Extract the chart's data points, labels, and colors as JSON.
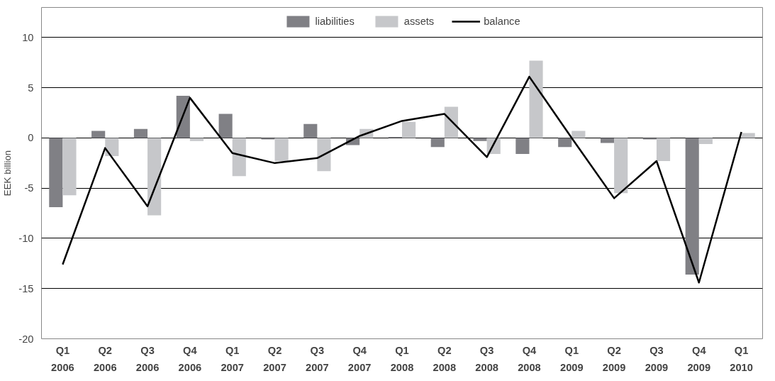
{
  "chart_data": {
    "type": "bar",
    "ylabel": "EEK billion",
    "categories": [
      "Q1\n2006",
      "Q2\n2006",
      "Q3\n2006",
      "Q4\n2006",
      "Q1\n2007",
      "Q2\n2007",
      "Q3\n2007",
      "Q4\n2007",
      "Q1\n2008",
      "Q2\n2008",
      "Q3\n2008",
      "Q4\n2008",
      "Q1\n2009",
      "Q2\n2009",
      "Q3\n2009",
      "Q4\n2009",
      "Q1\n2010"
    ],
    "series": [
      {
        "name": "liabilities",
        "color": "#808085",
        "values": [
          -6.9,
          0.7,
          0.9,
          4.2,
          2.4,
          -0.15,
          1.4,
          -0.7,
          0.1,
          -0.9,
          -0.3,
          -1.6,
          -0.9,
          -0.5,
          -0.15,
          -13.6,
          null
        ]
      },
      {
        "name": "assets",
        "color": "#c6c7ca",
        "values": [
          -5.7,
          -1.8,
          -7.7,
          -0.3,
          -3.8,
          -2.3,
          -3.3,
          0.9,
          1.6,
          3.1,
          -1.6,
          7.7,
          0.7,
          -5.5,
          -2.3,
          -0.6,
          0.5
        ]
      },
      {
        "name": "balance",
        "type": "line",
        "color": "#000000",
        "values": [
          -12.6,
          -1.0,
          -6.8,
          4.0,
          -1.5,
          -2.5,
          -2.0,
          0.2,
          1.7,
          2.4,
          -1.9,
          6.1,
          0.0,
          -6.0,
          -2.3,
          -14.4,
          0.6
        ]
      }
    ],
    "ylim": [
      -20,
      13
    ],
    "yticks": [
      -20,
      -15,
      -10,
      -5,
      0,
      5,
      10
    ],
    "grid": "y",
    "legend": "top",
    "marker": "none",
    "line_style": "solid"
  }
}
